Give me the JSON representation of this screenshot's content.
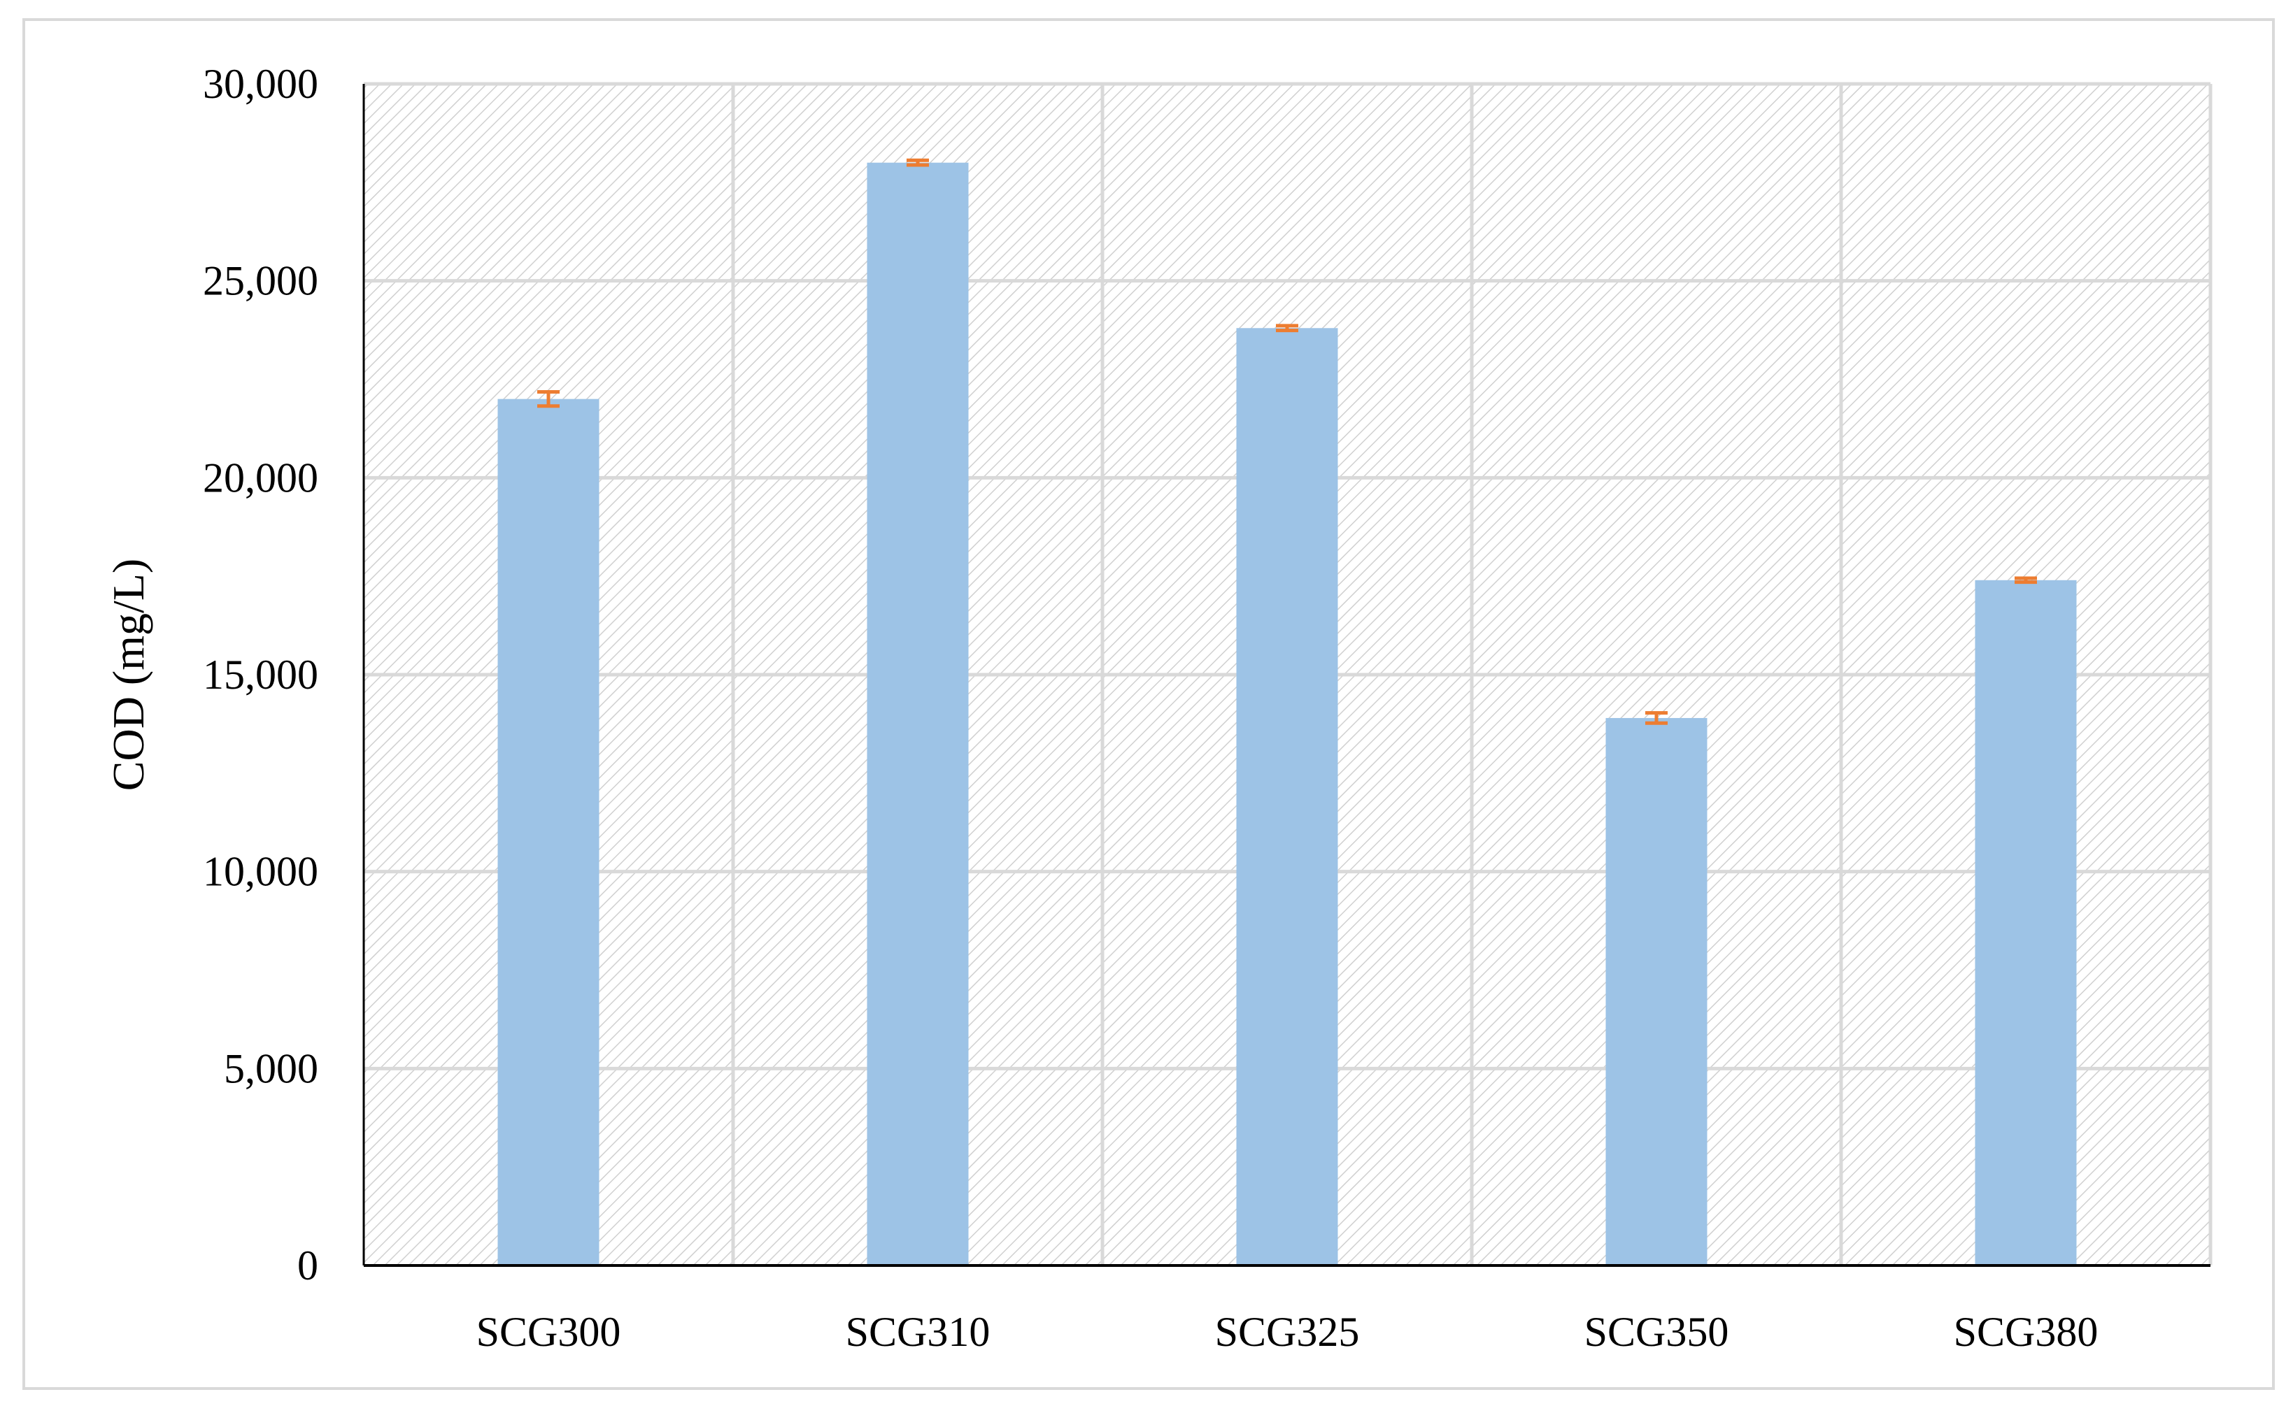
{
  "chart_data": {
    "type": "bar",
    "title": "",
    "xlabel": "",
    "ylabel": "COD (mg/L)",
    "ylim": [
      0,
      30000
    ],
    "yticks": [
      "0",
      "5,000",
      "10,000",
      "15,000",
      "20,000",
      "25,000",
      "30,000"
    ],
    "grid": true,
    "legend": "none",
    "categories": [
      "SCG300",
      "SCG310",
      "SCG325",
      "SCG350",
      "SCG380"
    ],
    "values": [
      22000,
      28000,
      23800,
      13900,
      17400
    ],
    "error": [
      180,
      60,
      60,
      130,
      50
    ],
    "colors": {
      "bar": "#9dc3e6",
      "error_bar": "#ed7d31",
      "grid": "#d9d9d9",
      "axis": "#000000"
    }
  }
}
